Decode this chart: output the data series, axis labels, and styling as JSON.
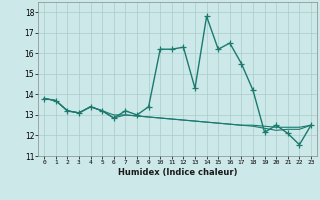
{
  "xlabel": "Humidex (Indice chaleur)",
  "background_color": "#cce8e8",
  "grid_color": "#aacccc",
  "line_color": "#1a7a6e",
  "xlim": [
    -0.5,
    23.5
  ],
  "ylim": [
    11,
    18.5
  ],
  "yticks": [
    11,
    12,
    13,
    14,
    15,
    16,
    17,
    18
  ],
  "xticks": [
    0,
    1,
    2,
    3,
    4,
    5,
    6,
    7,
    8,
    9,
    10,
    11,
    12,
    13,
    14,
    15,
    16,
    17,
    18,
    19,
    20,
    21,
    22,
    23
  ],
  "xtick_labels": [
    "0",
    "1",
    "2",
    "3",
    "4",
    "5",
    "6",
    "7",
    "8",
    "9",
    "10",
    "11",
    "12",
    "13",
    "14",
    "15",
    "16",
    "17",
    "18",
    "19",
    "20",
    "21",
    "22",
    "23"
  ],
  "series_main": {
    "x": [
      0,
      1,
      2,
      3,
      4,
      5,
      6,
      7,
      8,
      9,
      10,
      11,
      12,
      13,
      14,
      15,
      16,
      17,
      18,
      19,
      20,
      21,
      22,
      23
    ],
    "y": [
      13.8,
      13.7,
      13.2,
      13.1,
      13.4,
      13.2,
      12.85,
      13.2,
      13.0,
      13.4,
      16.2,
      16.2,
      16.3,
      14.3,
      17.8,
      16.2,
      16.5,
      15.5,
      14.2,
      12.15,
      12.5,
      12.1,
      11.55,
      12.5
    ]
  },
  "series_line2": {
    "x": [
      0,
      1,
      2,
      3,
      4,
      5,
      6,
      7,
      8,
      9,
      10,
      11,
      12,
      13,
      14,
      15,
      16,
      17,
      18,
      19,
      20,
      21,
      22,
      23
    ],
    "y": [
      13.8,
      13.7,
      13.2,
      13.1,
      13.4,
      13.2,
      12.85,
      13.0,
      12.95,
      12.9,
      12.85,
      12.8,
      12.75,
      12.7,
      12.65,
      12.6,
      12.55,
      12.5,
      12.5,
      12.45,
      12.4,
      12.4,
      12.4,
      12.5
    ]
  },
  "series_line3": {
    "x": [
      0,
      1,
      2,
      3,
      4,
      5,
      6,
      7,
      8,
      9,
      10,
      11,
      12,
      13,
      14,
      15,
      16,
      17,
      18,
      19,
      20,
      21,
      22,
      23
    ],
    "y": [
      13.8,
      13.7,
      13.2,
      13.1,
      13.4,
      13.2,
      13.0,
      13.0,
      12.95,
      12.9,
      12.85,
      12.8,
      12.75,
      12.7,
      12.65,
      12.6,
      12.55,
      12.5,
      12.45,
      12.35,
      12.25,
      12.3,
      12.3,
      12.5
    ]
  }
}
